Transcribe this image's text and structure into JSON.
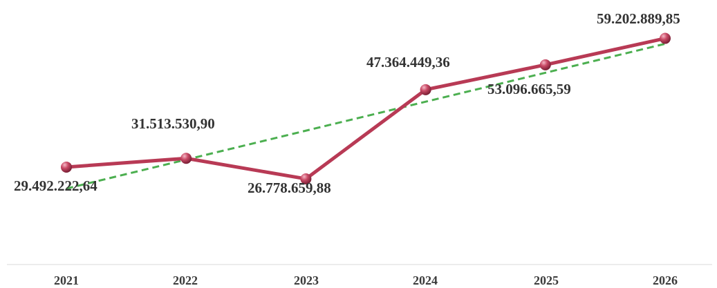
{
  "chart_data": {
    "type": "line",
    "title": "",
    "xlabel": "",
    "ylabel": "",
    "categories": [
      "2021",
      "2022",
      "2023",
      "2024",
      "2025",
      "2026"
    ],
    "series": [
      {
        "values": [
          29492222.64,
          31513530.9,
          26778659.88,
          47364449.36,
          53096665.59,
          59202889.85
        ],
        "color": "#b83a55",
        "marker": "sphere"
      }
    ],
    "data_labels": [
      "29.492.222,64",
      "31.513.530,90",
      "26.778.659,88",
      "47.364.449,36",
      "53.096.665,59",
      "59.202.889,85"
    ],
    "trendline": {
      "type": "linear",
      "style": "dashed",
      "color": "#4caf50",
      "from_category": "2021",
      "to_category": "2026"
    },
    "ylim": [
      0,
      70000000
    ],
    "grid": false,
    "y_axis_visible": false,
    "legend": "none"
  }
}
